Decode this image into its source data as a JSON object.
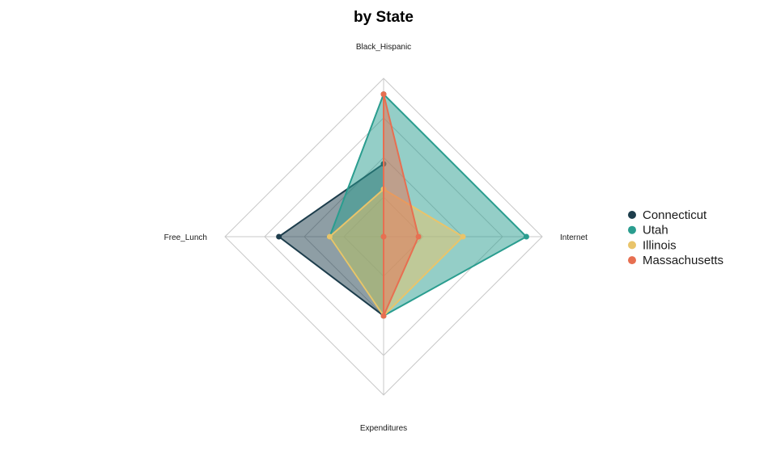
{
  "chart_data": {
    "type": "radar",
    "title": "by State",
    "axes": [
      "Black_Hispanic",
      "Internet",
      "Expenditures",
      "Free_Lunch"
    ],
    "range": [
      0,
      1
    ],
    "grid_levels": 4,
    "legend_position": "right",
    "series": [
      {
        "name": "Connecticut",
        "color": "#1d3d4c",
        "values": [
          0.46,
          0.0,
          0.5,
          0.66
        ]
      },
      {
        "name": "Utah",
        "color": "#2a9d8f",
        "values": [
          0.9,
          0.9,
          0.5,
          0.34
        ]
      },
      {
        "name": "Illinois",
        "color": "#e9c46a",
        "values": [
          0.3,
          0.5,
          0.5,
          0.34
        ]
      },
      {
        "name": "Massachusetts",
        "color": "#e76f51",
        "values": [
          0.9,
          0.22,
          0.5,
          0.0
        ]
      }
    ]
  }
}
